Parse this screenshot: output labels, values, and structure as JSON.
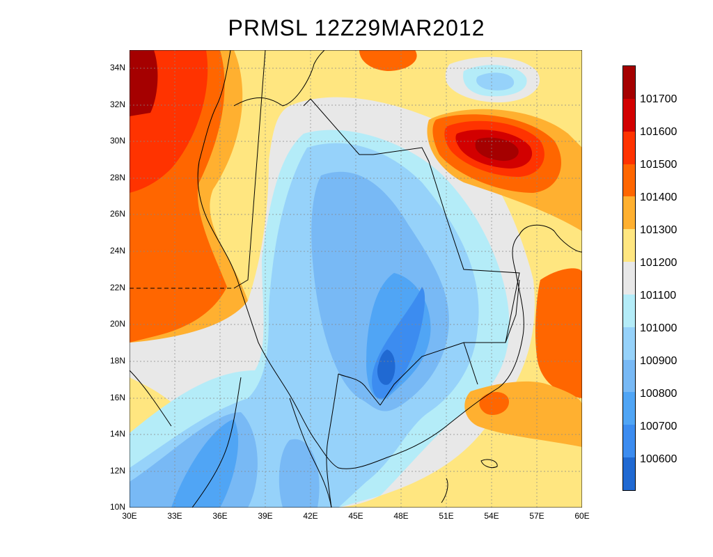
{
  "title": "PRMSL  12Z29MAR2012",
  "map": {
    "lon_range": [
      30,
      60
    ],
    "lat_range": [
      10,
      35
    ],
    "grid": true,
    "projection": "lat-lon",
    "y_ticks": [
      "34N",
      "32N",
      "30N",
      "28N",
      "26N",
      "24N",
      "22N",
      "20N",
      "18N",
      "16N",
      "14N",
      "12N",
      "10N"
    ],
    "y_tick_values": [
      34,
      32,
      30,
      28,
      26,
      24,
      22,
      20,
      18,
      16,
      14,
      12,
      10
    ],
    "x_ticks": [
      "30E",
      "33E",
      "36E",
      "39E",
      "42E",
      "45E",
      "48E",
      "51E",
      "54E",
      "57E",
      "60E"
    ],
    "x_tick_values": [
      30,
      33,
      36,
      39,
      42,
      45,
      48,
      51,
      54,
      57,
      60
    ]
  },
  "colorbar": {
    "labels": [
      "101700",
      "101600",
      "101500",
      "101400",
      "101300",
      "101200",
      "101100",
      "101000",
      "100900",
      "100800",
      "100700",
      "100600"
    ],
    "colors_top_to_bottom": [
      "#a50000",
      "#d20000",
      "#ff3300",
      "#ff6600",
      "#ffb030",
      "#ffe680",
      "#e8e8e8",
      "#b4ecf8",
      "#96d2fa",
      "#78b9f5",
      "#50a5f5",
      "#3c8cf0",
      "#2069d2"
    ]
  }
}
